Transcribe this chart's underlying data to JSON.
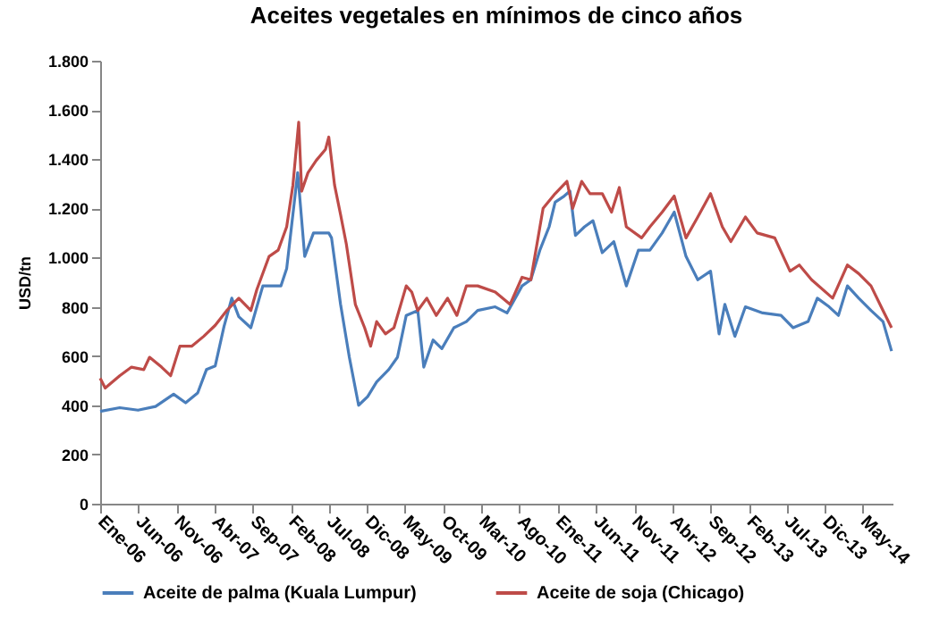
{
  "chart_data": {
    "type": "line",
    "title": "Aceites vegetales en mínimos de cinco años",
    "ylabel": "USD/tn",
    "legend": "bottom",
    "grid": false,
    "xlim": [
      "2006-01-01",
      "2014-08-28"
    ],
    "xticks": [
      {
        "value": "2006-01-01",
        "label": "Ene-06"
      },
      {
        "value": "2006-06-01",
        "label": "Jun-06"
      },
      {
        "value": "2006-11-01",
        "label": "Nov-06"
      },
      {
        "value": "2007-04-01",
        "label": "Abr-07"
      },
      {
        "value": "2007-09-01",
        "label": "Sep-07"
      },
      {
        "value": "2008-02-01",
        "label": "Feb-08"
      },
      {
        "value": "2008-07-01",
        "label": "Jul-08"
      },
      {
        "value": "2008-12-01",
        "label": "Dic-08"
      },
      {
        "value": "2009-05-01",
        "label": "May-09"
      },
      {
        "value": "2009-10-01",
        "label": "Oct-09"
      },
      {
        "value": "2010-03-01",
        "label": "Mar-10"
      },
      {
        "value": "2010-08-01",
        "label": "Ago-10"
      },
      {
        "value": "2011-01-01",
        "label": "Ene-11"
      },
      {
        "value": "2011-06-01",
        "label": "Jun-11"
      },
      {
        "value": "2011-11-01",
        "label": "Nov-11"
      },
      {
        "value": "2012-04-01",
        "label": "Abr-12"
      },
      {
        "value": "2012-09-01",
        "label": "Sep-12"
      },
      {
        "value": "2013-02-01",
        "label": "Feb-13"
      },
      {
        "value": "2013-07-01",
        "label": "Jul-13"
      },
      {
        "value": "2013-12-01",
        "label": "Dic-13"
      },
      {
        "value": "2014-05-01",
        "label": "May-14"
      }
    ],
    "ylim": [
      0,
      1800
    ],
    "yticks": [
      0,
      200,
      400,
      600,
      800,
      {
        "value": 1000,
        "label": "1.000"
      },
      {
        "value": 1200,
        "label": "1.200"
      },
      {
        "value": 1400,
        "label": "1.400"
      },
      {
        "value": 1600,
        "label": "1.600"
      },
      {
        "value": 1800,
        "label": "1.800"
      }
    ],
    "series": [
      {
        "name": "Aceite de palma (Kuala Lumpur)",
        "color": "#4a7ebb",
        "x": [
          "2006-01-01",
          "2006-03-20",
          "2006-06-01",
          "2006-08-10",
          "2006-10-21",
          "2006-12-08",
          "2007-01-25",
          "2007-03-01",
          "2007-04-05",
          "2007-05-10",
          "2007-06-10",
          "2007-07-08",
          "2007-08-25",
          "2007-10-12",
          "2007-12-23",
          "2008-01-15",
          "2008-02-28",
          "2008-03-27",
          "2008-05-01",
          "2008-07-01",
          "2008-07-12",
          "2008-08-17",
          "2008-09-21",
          "2008-10-28",
          "2008-12-03",
          "2009-01-08",
          "2009-02-25",
          "2009-04-01",
          "2009-05-06",
          "2009-06-21",
          "2009-07-15",
          "2009-08-21",
          "2009-09-25",
          "2009-11-12",
          "2010-01-01",
          "2010-02-15",
          "2010-04-26",
          "2010-06-12",
          "2010-08-11",
          "2010-09-15",
          "2010-10-21",
          "2010-11-27",
          "2010-12-21",
          "2011-01-26",
          "2011-02-18",
          "2011-03-12",
          "2011-04-17",
          "2011-05-21",
          "2011-06-27",
          "2011-08-12",
          "2011-10-01",
          "2011-11-18",
          "2012-01-03",
          "2012-02-21",
          "2012-04-09",
          "2012-05-26",
          "2012-07-12",
          "2012-09-01",
          "2012-10-05",
          "2012-10-28",
          "2012-12-07",
          "2013-01-18",
          "2013-03-28",
          "2013-06-09",
          "2013-07-27",
          "2013-09-25",
          "2013-11-01",
          "2013-12-18",
          "2014-01-24",
          "2014-03-01",
          "2014-04-15",
          "2014-06-03",
          "2014-07-21",
          "2014-08-24"
        ],
        "values": [
          375,
          390,
          380,
          395,
          445,
          410,
          450,
          545,
          560,
          720,
          835,
          760,
          715,
          885,
          885,
          955,
          1345,
          1005,
          1100,
          1100,
          1080,
          810,
          595,
          400,
          435,
          495,
          545,
          595,
          765,
          785,
          555,
          665,
          630,
          715,
          740,
          785,
          800,
          775,
          885,
          910,
          1030,
          1125,
          1225,
          1250,
          1270,
          1090,
          1125,
          1150,
          1020,
          1065,
          885,
          1030,
          1030,
          1100,
          1185,
          1005,
          910,
          945,
          690,
          810,
          680,
          800,
          775,
          765,
          715,
          740,
          835,
          800,
          765,
          885,
          835,
          785,
          740,
          620
        ]
      },
      {
        "name": "Aceite de soja (Chicago)",
        "color": "#be4b48",
        "x": [
          "2006-01-01",
          "2006-01-21",
          "2006-03-20",
          "2006-05-06",
          "2006-06-24",
          "2006-07-17",
          "2006-09-03",
          "2006-10-09",
          "2006-11-15",
          "2007-01-01",
          "2007-02-18",
          "2007-04-05",
          "2007-05-21",
          "2007-07-08",
          "2007-08-25",
          "2007-09-18",
          "2007-11-06",
          "2007-12-12",
          "2008-01-15",
          "2008-02-09",
          "2008-03-03",
          "2008-03-15",
          "2008-04-09",
          "2008-05-12",
          "2008-06-18",
          "2008-07-01",
          "2008-07-24",
          "2008-08-17",
          "2008-09-09",
          "2008-10-15",
          "2008-11-21",
          "2008-12-15",
          "2009-01-08",
          "2009-02-12",
          "2009-03-18",
          "2009-05-06",
          "2009-05-28",
          "2009-06-21",
          "2009-07-27",
          "2009-09-03",
          "2009-10-18",
          "2009-11-24",
          "2010-01-01",
          "2010-02-15",
          "2010-04-26",
          "2010-06-24",
          "2010-08-11",
          "2010-09-15",
          "2010-11-03",
          "2010-12-21",
          "2011-02-06",
          "2011-03-01",
          "2011-04-06",
          "2011-05-09",
          "2011-06-27",
          "2011-08-03",
          "2011-09-03",
          "2011-10-01",
          "2011-12-01",
          "2012-01-03",
          "2012-02-21",
          "2012-04-09",
          "2012-05-26",
          "2012-07-12",
          "2012-09-01",
          "2012-10-18",
          "2012-11-21",
          "2013-01-18",
          "2013-03-06",
          "2013-05-15",
          "2013-07-15",
          "2013-08-21",
          "2013-10-09",
          "2014-01-01",
          "2014-03-01",
          "2014-04-15",
          "2014-06-03",
          "2014-07-21",
          "2014-08-24"
        ],
        "values": [
          510,
          470,
          520,
          555,
          545,
          595,
          555,
          520,
          640,
          640,
          680,
          725,
          785,
          835,
          785,
          870,
          1005,
          1030,
          1125,
          1295,
          1550,
          1270,
          1345,
          1395,
          1440,
          1490,
          1295,
          1175,
          1055,
          810,
          715,
          640,
          740,
          690,
          715,
          885,
          860,
          785,
          835,
          765,
          835,
          765,
          885,
          885,
          860,
          810,
          920,
          910,
          1200,
          1260,
          1310,
          1200,
          1310,
          1260,
          1260,
          1185,
          1285,
          1125,
          1080,
          1125,
          1185,
          1250,
          1080,
          1165,
          1260,
          1125,
          1065,
          1165,
          1100,
          1080,
          945,
          970,
          910,
          835,
          970,
          935,
          885,
          785,
          715
        ]
      }
    ]
  }
}
